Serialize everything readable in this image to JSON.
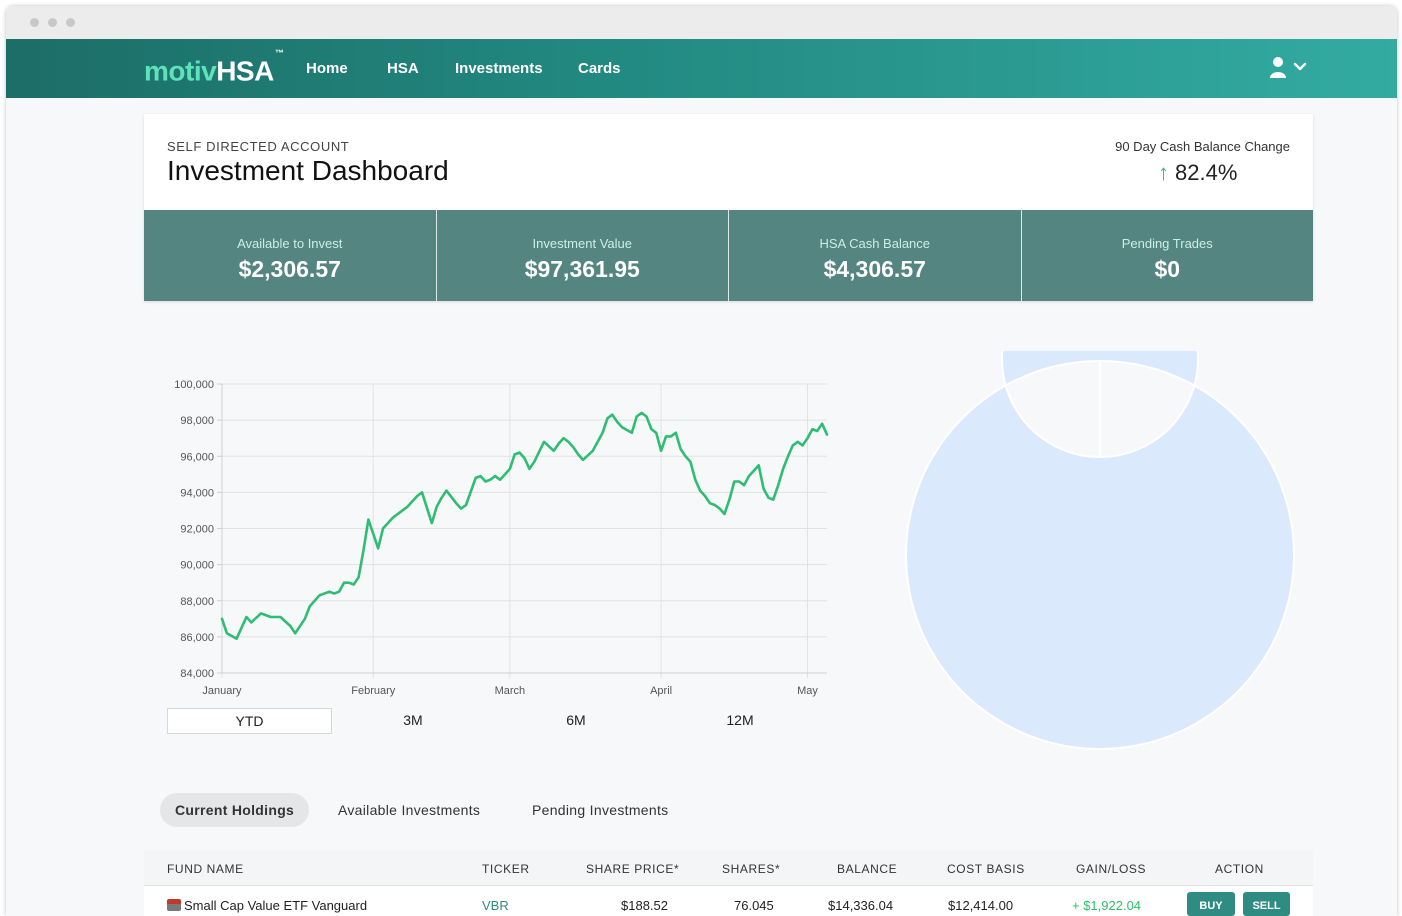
{
  "brand": {
    "part1": "motiv",
    "part2": "HSA",
    "tm": "™"
  },
  "nav": {
    "home": "Home",
    "hsa": "HSA",
    "investments": "Investments",
    "cards": "Cards"
  },
  "header": {
    "kicker": "SELF DIRECTED ACCOUNT",
    "title": "Investment Dashboard",
    "change_label": "90 Day Cash Balance Change",
    "change_value": "82.4%"
  },
  "stats": [
    {
      "label": "Available to Invest",
      "value": "$2,306.57"
    },
    {
      "label": "Investment Value",
      "value": "$97,361.95"
    },
    {
      "label": "HSA Cash Balance",
      "value": "$4,306.57"
    },
    {
      "label": "Pending Trades",
      "value": "$0"
    }
  ],
  "ranges": [
    "YTD",
    "3M",
    "6M",
    "12M"
  ],
  "tabs": [
    "Current Holdings",
    "Available Investments",
    "Pending Investments"
  ],
  "table": {
    "headers": [
      "FUND NAME",
      "TICKER",
      "SHARE PRICE*",
      "SHARES*",
      "BALANCE",
      "COST BASIS",
      "GAIN/LOSS",
      "ACTION"
    ],
    "rows": [
      {
        "fund": "Small Cap Value ETF Vanguard",
        "ticker": "VBR",
        "price": "$188.52",
        "shares": "76.045",
        "balance": "$14,336.04",
        "cost": "$12,414.00",
        "gain": "+ $1,922.04",
        "buy": "BUY",
        "sell": "SELL"
      }
    ]
  },
  "colors": {
    "line": "#2fbd73",
    "donut": "#dbe9fd",
    "stat_bg": "#558580"
  },
  "chart_data": {
    "type": "line",
    "title": "",
    "ylim": [
      84000,
      100000
    ],
    "yticks": [
      "100,000",
      "98,000",
      "96,000",
      "94,000",
      "92,000",
      "90,000",
      "88,000",
      "86,000",
      "84,000"
    ],
    "xticks": [
      {
        "label": "January",
        "day": 0
      },
      {
        "label": "February",
        "day": 31
      },
      {
        "label": "March",
        "day": 59
      },
      {
        "label": "April",
        "day": 90
      },
      {
        "label": "May",
        "day": 120
      }
    ],
    "grid": true,
    "series": [
      {
        "values": [
          [
            0,
            87000
          ],
          [
            1,
            86200
          ],
          [
            3,
            85900
          ],
          [
            5,
            87100
          ],
          [
            6,
            86800
          ],
          [
            8,
            87300
          ],
          [
            10,
            87100
          ],
          [
            12,
            87100
          ],
          [
            14,
            86600
          ],
          [
            15,
            86200
          ],
          [
            17,
            87000
          ],
          [
            18,
            87700
          ],
          [
            20,
            88300
          ],
          [
            22,
            88500
          ],
          [
            23,
            88400
          ],
          [
            24,
            88500
          ],
          [
            25,
            89000
          ],
          [
            26,
            89000
          ],
          [
            27,
            88900
          ],
          [
            28,
            89300
          ],
          [
            29,
            90800
          ],
          [
            30,
            92500
          ],
          [
            31,
            91700
          ],
          [
            32,
            90900
          ],
          [
            33,
            92000
          ],
          [
            35,
            92600
          ],
          [
            37,
            93000
          ],
          [
            38,
            93200
          ],
          [
            40,
            93800
          ],
          [
            41,
            94000
          ],
          [
            43,
            92300
          ],
          [
            44,
            93200
          ],
          [
            45,
            93700
          ],
          [
            46,
            94100
          ],
          [
            48,
            93400
          ],
          [
            49,
            93100
          ],
          [
            50,
            93300
          ],
          [
            52,
            94800
          ],
          [
            53,
            94900
          ],
          [
            54,
            94600
          ],
          [
            55,
            94700
          ],
          [
            56,
            94900
          ],
          [
            57,
            94700
          ],
          [
            59,
            95300
          ],
          [
            60,
            96100
          ],
          [
            61,
            96200
          ],
          [
            62,
            95900
          ],
          [
            63,
            95300
          ],
          [
            64,
            95700
          ],
          [
            66,
            96800
          ],
          [
            68,
            96300
          ],
          [
            69,
            96700
          ],
          [
            70,
            97000
          ],
          [
            71,
            96800
          ],
          [
            72,
            96500
          ],
          [
            73,
            96100
          ],
          [
            74,
            95800
          ],
          [
            76,
            96300
          ],
          [
            78,
            97300
          ],
          [
            79,
            98100
          ],
          [
            80,
            98300
          ],
          [
            81,
            97900
          ],
          [
            82,
            97600
          ],
          [
            84,
            97300
          ],
          [
            85,
            98200
          ],
          [
            86,
            98400
          ],
          [
            87,
            98200
          ],
          [
            88,
            97500
          ],
          [
            89,
            97300
          ],
          [
            90,
            96300
          ],
          [
            91,
            97100
          ],
          [
            92,
            97100
          ],
          [
            93,
            97300
          ],
          [
            94,
            96400
          ],
          [
            95,
            96000
          ],
          [
            96,
            95700
          ],
          [
            97,
            94700
          ],
          [
            98,
            94100
          ],
          [
            99,
            93800
          ],
          [
            100,
            93400
          ],
          [
            101,
            93300
          ],
          [
            102,
            93100
          ],
          [
            103,
            92800
          ],
          [
            104,
            93600
          ],
          [
            105,
            94600
          ],
          [
            106,
            94600
          ],
          [
            107,
            94400
          ],
          [
            108,
            94900
          ],
          [
            109,
            95200
          ],
          [
            110,
            95500
          ],
          [
            111,
            94200
          ],
          [
            112,
            93700
          ],
          [
            113,
            93600
          ],
          [
            114,
            94400
          ],
          [
            115,
            95300
          ],
          [
            116,
            96000
          ],
          [
            117,
            96600
          ],
          [
            118,
            96800
          ],
          [
            119,
            96600
          ],
          [
            120,
            97000
          ],
          [
            121,
            97500
          ],
          [
            122,
            97400
          ],
          [
            123,
            97800
          ],
          [
            124,
            97200
          ]
        ]
      }
    ]
  },
  "donut_data": {
    "type": "pie",
    "values": [
      100
    ]
  }
}
